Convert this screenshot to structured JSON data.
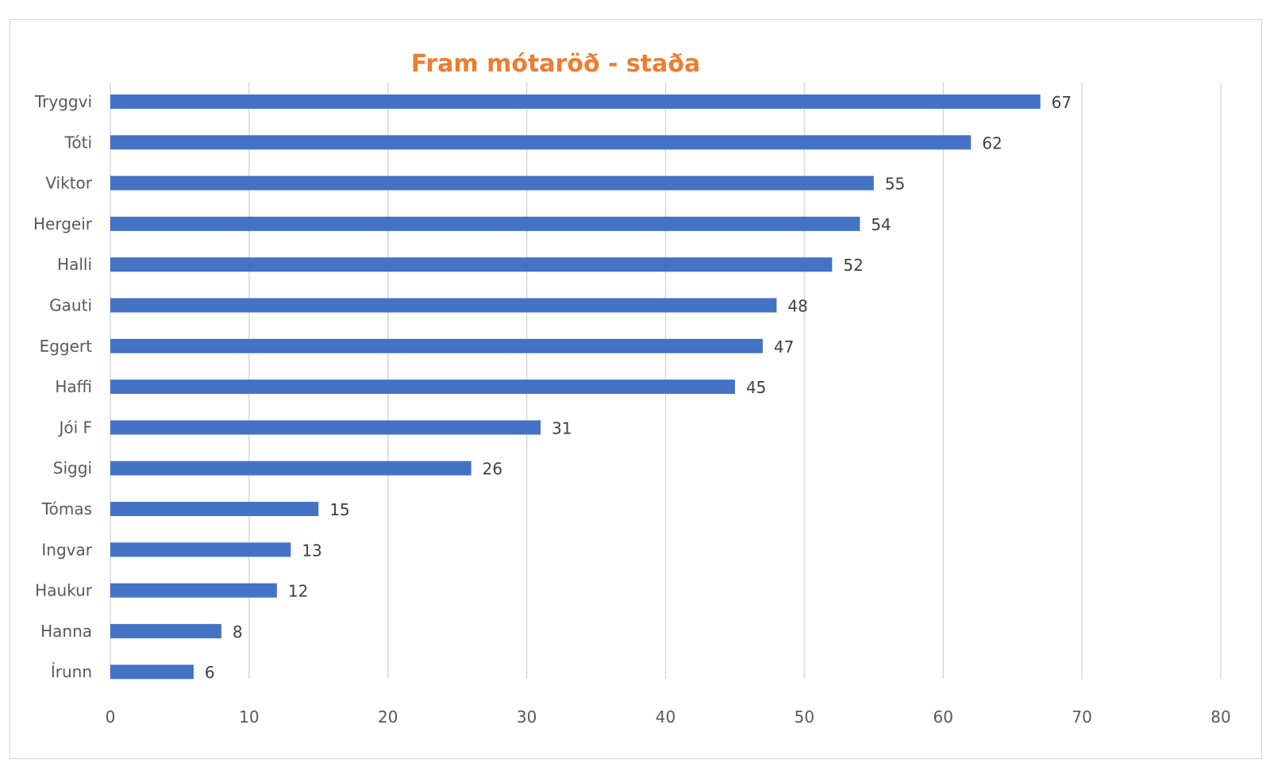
{
  "chart_data": {
    "type": "bar",
    "orientation": "horizontal",
    "title": "Fram mótaröð - staða",
    "categories": [
      "Tryggvi",
      "Tóti",
      "Viktor",
      "Hergeir",
      "Halli",
      "Gauti",
      "Eggert",
      "Haffi",
      "Jói F",
      "Siggi",
      "Tómas",
      "Ingvar",
      "Haukur",
      "Hanna",
      "Írunn"
    ],
    "values": [
      67,
      62,
      55,
      54,
      52,
      48,
      47,
      45,
      31,
      26,
      15,
      13,
      12,
      8,
      6
    ],
    "data_labels": [
      "67",
      "62",
      "55",
      "54",
      "52",
      "48",
      "47",
      "45",
      "31",
      "26",
      "15",
      "13",
      "12",
      "8",
      "6"
    ],
    "xlim": [
      0,
      80
    ],
    "x_ticks": [
      "0",
      "10",
      "20",
      "30",
      "40",
      "50",
      "60",
      "70",
      "80"
    ],
    "grid": true,
    "legend": "none",
    "xlabel": "",
    "ylabel": "",
    "colors": {
      "bar": "#4472c4",
      "title": "#ed7d31",
      "grid": "#d9d9d9",
      "text": "#595959"
    }
  }
}
